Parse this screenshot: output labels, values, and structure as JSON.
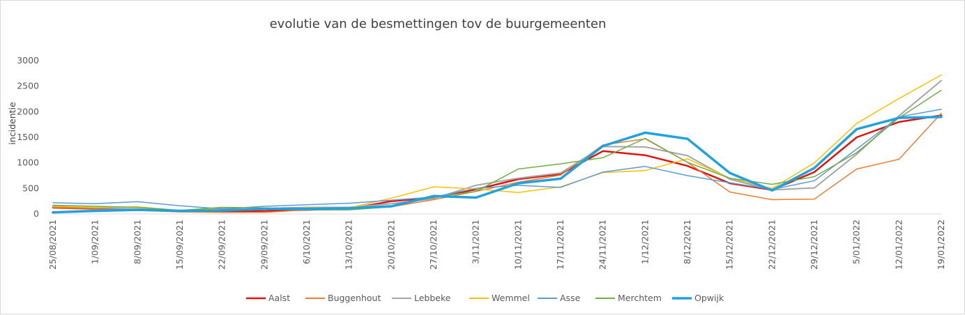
{
  "chart_data": {
    "type": "line",
    "title": "evolutie van de besmettingen tov de buurgemeenten",
    "xlabel": "",
    "ylabel": "incidentie",
    "ylim": [
      0,
      3000
    ],
    "yticks": [
      0,
      500,
      1000,
      1500,
      2000,
      2500,
      3000
    ],
    "grid": false,
    "legend_position": "bottom",
    "categories": [
      "25/08/2021",
      "1/09/2021",
      "8/09/2021",
      "15/09/2021",
      "22/09/2021",
      "29/09/2021",
      "6/10/2021",
      "13/10/2021",
      "20/10/2021",
      "27/10/2021",
      "3/11/2021",
      "10/11/2021",
      "17/11/2021",
      "24/11/2021",
      "1/12/2021",
      "8/12/2021",
      "15/12/2021",
      "22/12/2021",
      "29/12/2021",
      "5/01/2022",
      "12/01/2022",
      "19/01/2022"
    ],
    "series": [
      {
        "name": "Aalst",
        "color": "#e3120b",
        "width": 2.5,
        "values": [
          130,
          100,
          80,
          60,
          50,
          60,
          80,
          100,
          250,
          320,
          480,
          680,
          780,
          1230,
          1150,
          940,
          600,
          470,
          820,
          1500,
          1800,
          1930
        ]
      },
      {
        "name": "Buggenhout",
        "color": "#ed7d31",
        "width": 1.5,
        "values": [
          110,
          90,
          70,
          40,
          30,
          30,
          80,
          90,
          140,
          280,
          440,
          620,
          760,
          1350,
          1470,
          1010,
          430,
          280,
          290,
          880,
          1070,
          1970
        ]
      },
      {
        "name": "Lebbeke",
        "color": "#a5a5a5",
        "width": 2,
        "values": [
          150,
          120,
          100,
          70,
          60,
          110,
          130,
          130,
          200,
          300,
          560,
          700,
          800,
          1320,
          1310,
          1140,
          680,
          470,
          510,
          1170,
          1920,
          2610
        ]
      },
      {
        "name": "Wemmel",
        "color": "#ffc000",
        "width": 1.5,
        "values": [
          140,
          130,
          140,
          70,
          110,
          80,
          120,
          120,
          310,
          530,
          490,
          420,
          530,
          810,
          850,
          1080,
          700,
          500,
          1000,
          1770,
          2260,
          2720
        ]
      },
      {
        "name": "Asse",
        "color": "#5b9bd5",
        "width": 1.5,
        "values": [
          220,
          200,
          240,
          160,
          100,
          150,
          180,
          210,
          270,
          330,
          500,
          560,
          520,
          820,
          930,
          750,
          610,
          480,
          650,
          1270,
          1900,
          2050
        ]
      },
      {
        "name": "Merchtem",
        "color": "#70ad47",
        "width": 1.5,
        "values": [
          170,
          150,
          130,
          70,
          130,
          120,
          80,
          80,
          140,
          330,
          440,
          880,
          980,
          1100,
          1480,
          1010,
          700,
          580,
          730,
          1200,
          1880,
          2420
        ]
      },
      {
        "name": "Opwijk",
        "color": "#1ea2e0",
        "width": 3.5,
        "values": [
          30,
          60,
          80,
          60,
          70,
          100,
          100,
          110,
          150,
          350,
          320,
          600,
          690,
          1330,
          1590,
          1470,
          800,
          460,
          900,
          1660,
          1880,
          1900
        ]
      }
    ]
  }
}
